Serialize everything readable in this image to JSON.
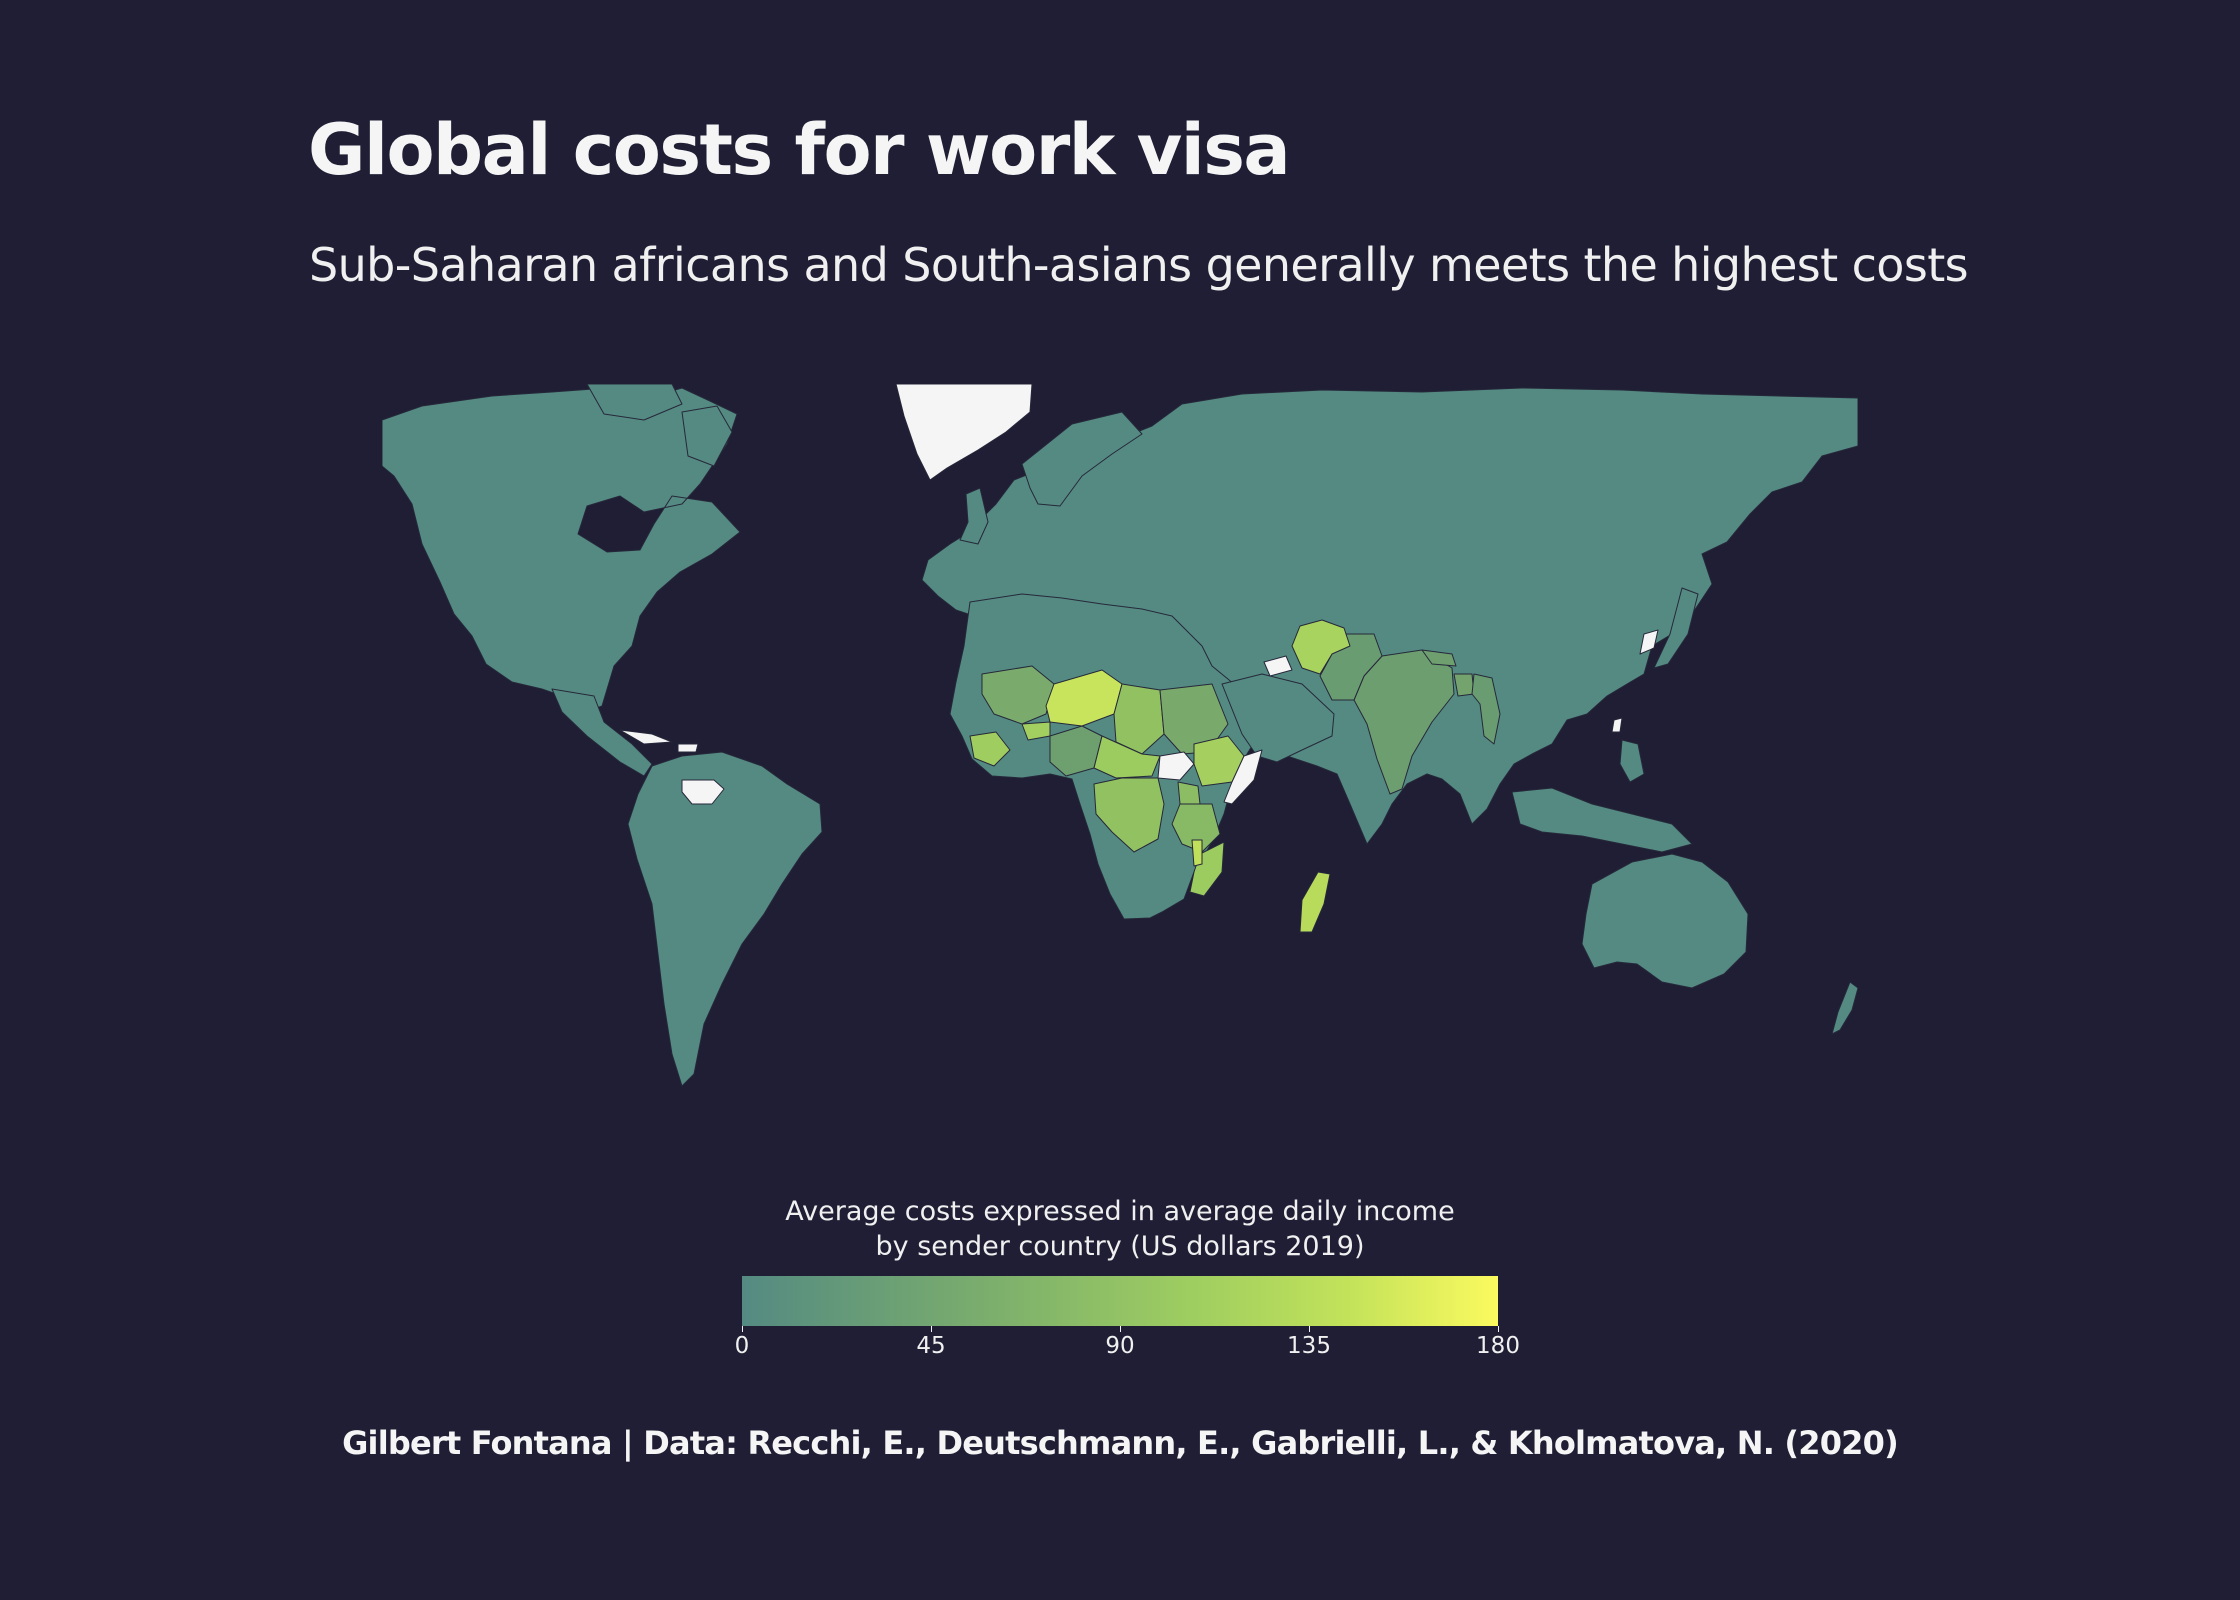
{
  "header": {
    "title": "Global costs for work visa",
    "subtitle": "Sub-Saharan africans and South-asians generally meets the highest costs"
  },
  "map": {
    "projection": "world",
    "colors": {
      "background": "#1f1e35",
      "base": "#548a82",
      "no_data": "#f5f5f5",
      "border": "#26283a"
    },
    "regions": [
      {
        "name": "Greenland",
        "value": null
      },
      {
        "name": "Venezuela",
        "value": null
      },
      {
        "name": "Cuba",
        "value": null
      },
      {
        "name": "Haiti",
        "value": null
      },
      {
        "name": "Syria",
        "value": null
      },
      {
        "name": "North Korea",
        "value": null
      },
      {
        "name": "Taiwan",
        "value": null
      },
      {
        "name": "South Sudan",
        "value": null
      },
      {
        "name": "Somalia",
        "value": null
      },
      {
        "name": "Western Sahara",
        "value": null
      },
      {
        "name": "Afghanistan",
        "value": 120
      },
      {
        "name": "Niger",
        "value": 150
      },
      {
        "name": "Chad",
        "value": 90
      },
      {
        "name": "Mali",
        "value": 75
      },
      {
        "name": "Burkina Faso",
        "value": 110
      },
      {
        "name": "Sudan",
        "value": 65
      },
      {
        "name": "Ethiopia",
        "value": 110
      },
      {
        "name": "Central African Republic",
        "value": 125
      },
      {
        "name": "DR Congo",
        "value": 110
      },
      {
        "name": "Uganda",
        "value": 100
      },
      {
        "name": "Rwanda",
        "value": 130
      },
      {
        "name": "Burundi",
        "value": 155
      },
      {
        "name": "Tanzania",
        "value": 90
      },
      {
        "name": "Mozambique",
        "value": 110
      },
      {
        "name": "Malawi",
        "value": 150
      },
      {
        "name": "Madagascar",
        "value": 140
      },
      {
        "name": "Guinea",
        "value": 100
      },
      {
        "name": "Sierra Leone",
        "value": 110
      },
      {
        "name": "Liberia",
        "value": 120
      },
      {
        "name": "Nigeria",
        "value": 45
      },
      {
        "name": "India",
        "value": 40
      },
      {
        "name": "Pakistan",
        "value": 45
      },
      {
        "name": "Nepal",
        "value": 50
      },
      {
        "name": "Bangladesh",
        "value": 55
      },
      {
        "name": "Myanmar",
        "value": 40
      }
    ]
  },
  "legend": {
    "title_line1": "Average costs expressed in average daily income",
    "title_line2": "by sender country (US dollars 2019)",
    "min": 0,
    "max": 180,
    "ticks": [
      "0",
      "45",
      "90",
      "135",
      "180"
    ],
    "colors": [
      "#548a82",
      "#78ab6e",
      "#9fce60",
      "#c2e25a",
      "#fbfa5f"
    ]
  },
  "footer": {
    "caption": "Gilbert Fontana | Data: Recchi, E., Deutschmann, E., Gabrielli, L., & Kholmatova, N. (2020)"
  }
}
